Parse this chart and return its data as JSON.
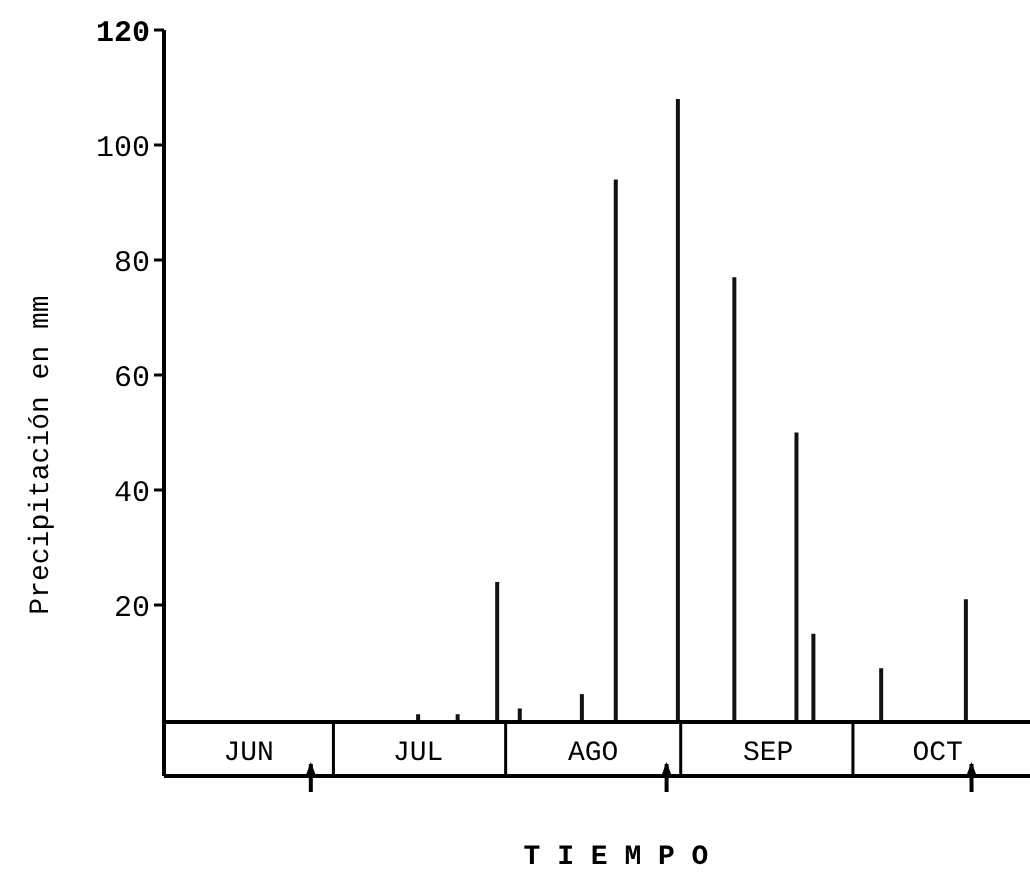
{
  "chart_data": {
    "type": "bar",
    "xlabel": "T I E M P O",
    "ylabel": "Precipitación en mm",
    "x": [
      "--07-16",
      "--07-23",
      "--07-30",
      "--08-03",
      "--08-14",
      "--08-20",
      "--08-31",
      "--09-10",
      "--09-21",
      "--09-24",
      "--10-06",
      "--10-21"
    ],
    "values": [
      1,
      1,
      24,
      2,
      4.5,
      94,
      108,
      77,
      50,
      15,
      9,
      21
    ],
    "color": "#111111",
    "xlim": [
      "--06-01",
      "--11-01"
    ],
    "xticks": [
      {
        "value": "--06-16",
        "label": "JUN"
      },
      {
        "value": "--07-16",
        "label": "JUL"
      },
      {
        "value": "--08-16",
        "label": "AGO"
      },
      {
        "value": "--09-16",
        "label": "SEP"
      },
      {
        "value": "--10-16",
        "label": "OCT"
      }
    ],
    "ylim": [
      0,
      120
    ],
    "yticks": [
      20,
      40,
      60,
      80,
      100,
      120
    ],
    "grid": false
  }
}
